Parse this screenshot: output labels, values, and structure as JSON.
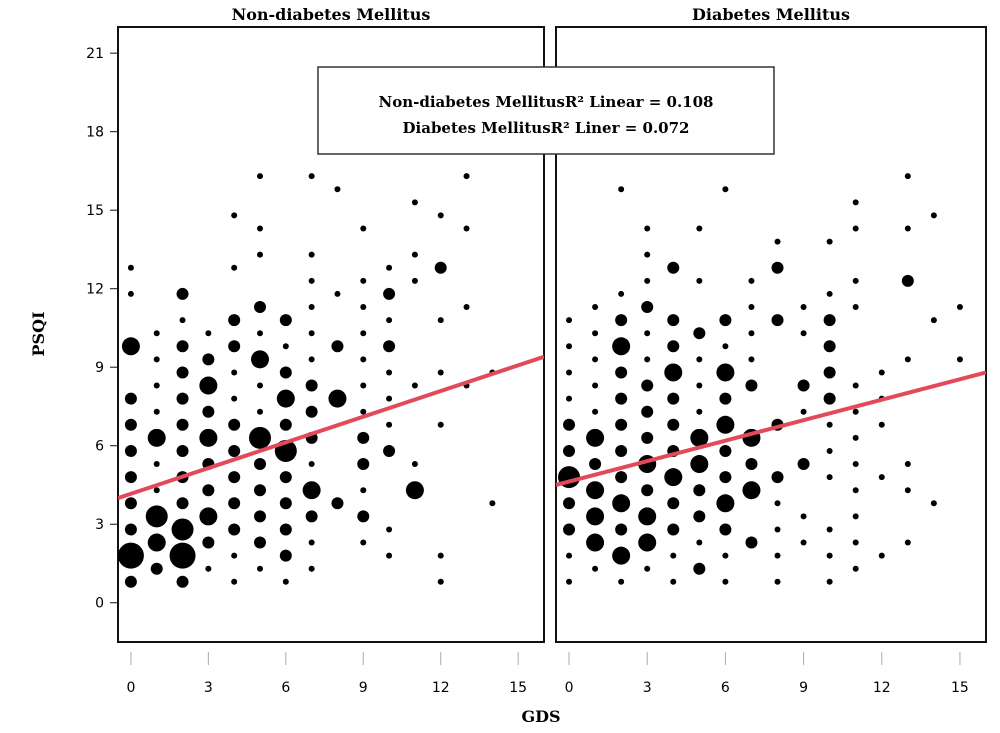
{
  "chart_data": [
    {
      "type": "scatter",
      "title": "Non-diabetes Mellitus",
      "xlabel": "GDS",
      "ylabel": "PSQI",
      "xlim": [
        -0.5,
        16
      ],
      "ylim": [
        -1.5,
        22
      ],
      "xticks": [
        0,
        3,
        6,
        9,
        12,
        15
      ],
      "yticks": [
        0,
        3,
        6,
        9,
        12,
        15,
        18,
        21
      ],
      "grid": false,
      "fit_line": {
        "label": "Non-diabetes MellitusR² Linear = 0.108",
        "color": "#e24a5b",
        "x": [
          -0.5,
          16
        ],
        "y": [
          4.0,
          9.4
        ]
      },
      "points": [
        [
          0,
          0.8,
          2
        ],
        [
          0,
          1.8,
          5
        ],
        [
          0,
          2.8,
          2
        ],
        [
          0,
          3.8,
          2
        ],
        [
          0,
          4.8,
          2
        ],
        [
          0,
          5.8,
          2
        ],
        [
          0,
          6.8,
          2
        ],
        [
          0,
          7.8,
          2
        ],
        [
          0,
          9.8,
          3
        ],
        [
          0,
          11.8,
          1
        ],
        [
          0,
          12.8,
          1
        ],
        [
          1,
          1.3,
          2
        ],
        [
          1,
          2.3,
          3
        ],
        [
          1,
          3.3,
          4
        ],
        [
          1,
          4.3,
          1
        ],
        [
          1,
          5.3,
          1
        ],
        [
          1,
          6.3,
          3
        ],
        [
          1,
          7.3,
          1
        ],
        [
          1,
          8.3,
          1
        ],
        [
          1,
          9.3,
          1
        ],
        [
          1,
          10.3,
          1
        ],
        [
          2,
          0.8,
          2
        ],
        [
          2,
          1.8,
          5
        ],
        [
          2,
          2.8,
          4
        ],
        [
          2,
          3.8,
          2
        ],
        [
          2,
          4.8,
          2
        ],
        [
          2,
          5.8,
          2
        ],
        [
          2,
          6.8,
          2
        ],
        [
          2,
          7.8,
          2
        ],
        [
          2,
          8.8,
          2
        ],
        [
          2,
          9.8,
          2
        ],
        [
          2,
          10.8,
          1
        ],
        [
          2,
          11.8,
          2
        ],
        [
          3,
          1.3,
          1
        ],
        [
          3,
          2.3,
          2
        ],
        [
          3,
          3.3,
          3
        ],
        [
          3,
          4.3,
          2
        ],
        [
          3,
          5.3,
          2
        ],
        [
          3,
          6.3,
          3
        ],
        [
          3,
          7.3,
          2
        ],
        [
          3,
          8.3,
          3
        ],
        [
          3,
          9.3,
          2
        ],
        [
          3,
          10.3,
          1
        ],
        [
          4,
          0.8,
          1
        ],
        [
          4,
          1.8,
          1
        ],
        [
          4,
          2.8,
          2
        ],
        [
          4,
          3.8,
          2
        ],
        [
          4,
          4.8,
          2
        ],
        [
          4,
          5.8,
          2
        ],
        [
          4,
          6.8,
          2
        ],
        [
          4,
          7.8,
          1
        ],
        [
          4,
          8.8,
          1
        ],
        [
          4,
          9.8,
          2
        ],
        [
          4,
          10.8,
          2
        ],
        [
          4,
          12.8,
          1
        ],
        [
          4,
          14.8,
          1
        ],
        [
          5,
          1.3,
          1
        ],
        [
          5,
          2.3,
          2
        ],
        [
          5,
          3.3,
          2
        ],
        [
          5,
          4.3,
          2
        ],
        [
          5,
          5.3,
          2
        ],
        [
          5,
          6.3,
          4
        ],
        [
          5,
          7.3,
          1
        ],
        [
          5,
          8.3,
          1
        ],
        [
          5,
          9.3,
          3
        ],
        [
          5,
          10.3,
          1
        ],
        [
          5,
          11.3,
          2
        ],
        [
          5,
          13.3,
          1
        ],
        [
          5,
          14.3,
          1
        ],
        [
          5,
          16.3,
          1
        ],
        [
          6,
          0.8,
          1
        ],
        [
          6,
          1.8,
          2
        ],
        [
          6,
          2.8,
          2
        ],
        [
          6,
          3.8,
          2
        ],
        [
          6,
          4.8,
          2
        ],
        [
          6,
          5.8,
          4
        ],
        [
          6,
          6.8,
          2
        ],
        [
          6,
          7.8,
          3
        ],
        [
          6,
          8.8,
          2
        ],
        [
          6,
          9.8,
          1
        ],
        [
          6,
          10.8,
          2
        ],
        [
          7,
          1.3,
          1
        ],
        [
          7,
          2.3,
          1
        ],
        [
          7,
          3.3,
          2
        ],
        [
          7,
          4.3,
          3
        ],
        [
          7,
          5.3,
          1
        ],
        [
          7,
          6.3,
          2
        ],
        [
          7,
          7.3,
          2
        ],
        [
          7,
          8.3,
          2
        ],
        [
          7,
          9.3,
          1
        ],
        [
          7,
          10.3,
          1
        ],
        [
          7,
          11.3,
          1
        ],
        [
          7,
          12.3,
          1
        ],
        [
          7,
          13.3,
          1
        ],
        [
          7,
          16.3,
          1
        ],
        [
          8,
          3.8,
          2
        ],
        [
          8,
          7.8,
          3
        ],
        [
          8,
          9.8,
          2
        ],
        [
          8,
          11.8,
          1
        ],
        [
          8,
          15.8,
          1
        ],
        [
          9,
          2.3,
          1
        ],
        [
          9,
          3.3,
          2
        ],
        [
          9,
          4.3,
          1
        ],
        [
          9,
          5.3,
          2
        ],
        [
          9,
          6.3,
          2
        ],
        [
          9,
          7.3,
          1
        ],
        [
          9,
          8.3,
          1
        ],
        [
          9,
          9.3,
          1
        ],
        [
          9,
          10.3,
          1
        ],
        [
          9,
          11.3,
          1
        ],
        [
          9,
          12.3,
          1
        ],
        [
          9,
          14.3,
          1
        ],
        [
          10,
          1.8,
          1
        ],
        [
          10,
          2.8,
          1
        ],
        [
          10,
          5.8,
          2
        ],
        [
          10,
          6.8,
          1
        ],
        [
          10,
          7.8,
          1
        ],
        [
          10,
          8.8,
          1
        ],
        [
          10,
          9.8,
          2
        ],
        [
          10,
          10.8,
          1
        ],
        [
          10,
          11.8,
          2
        ],
        [
          10,
          12.8,
          1
        ],
        [
          11,
          4.3,
          3
        ],
        [
          11,
          5.3,
          1
        ],
        [
          11,
          8.3,
          1
        ],
        [
          11,
          12.3,
          1
        ],
        [
          11,
          13.3,
          1
        ],
        [
          11,
          15.3,
          1
        ],
        [
          12,
          0.8,
          1
        ],
        [
          12,
          1.8,
          1
        ],
        [
          12,
          6.8,
          1
        ],
        [
          12,
          8.8,
          1
        ],
        [
          12,
          10.8,
          1
        ],
        [
          12,
          12.8,
          2
        ],
        [
          12,
          14.8,
          1
        ],
        [
          13,
          8.3,
          1
        ],
        [
          13,
          11.3,
          1
        ],
        [
          13,
          14.3,
          1
        ],
        [
          13,
          16.3,
          1
        ],
        [
          14,
          3.8,
          1
        ],
        [
          14,
          8.8,
          1
        ]
      ]
    },
    {
      "type": "scatter",
      "title": "Diabetes Mellitus",
      "xlabel": "GDS",
      "ylabel": "PSQI",
      "xlim": [
        -0.5,
        16
      ],
      "ylim": [
        -1.5,
        22
      ],
      "xticks": [
        0,
        3,
        6,
        9,
        12,
        15
      ],
      "yticks": [
        0,
        3,
        6,
        9,
        12,
        15,
        18,
        21
      ],
      "grid": false,
      "fit_line": {
        "label": "Diabetes MellitusR² Liner = 0.072",
        "color": "#e24a5b",
        "x": [
          -0.5,
          16
        ],
        "y": [
          4.5,
          8.8
        ]
      },
      "points": [
        [
          0,
          0.8,
          1
        ],
        [
          0,
          1.8,
          1
        ],
        [
          0,
          2.8,
          2
        ],
        [
          0,
          3.8,
          2
        ],
        [
          0,
          4.8,
          4
        ],
        [
          0,
          5.8,
          2
        ],
        [
          0,
          6.8,
          2
        ],
        [
          0,
          7.8,
          1
        ],
        [
          0,
          8.8,
          1
        ],
        [
          0,
          9.8,
          1
        ],
        [
          0,
          10.8,
          1
        ],
        [
          1,
          1.3,
          1
        ],
        [
          1,
          2.3,
          3
        ],
        [
          1,
          3.3,
          3
        ],
        [
          1,
          4.3,
          3
        ],
        [
          1,
          5.3,
          2
        ],
        [
          1,
          6.3,
          3
        ],
        [
          1,
          7.3,
          1
        ],
        [
          1,
          8.3,
          1
        ],
        [
          1,
          9.3,
          1
        ],
        [
          1,
          10.3,
          1
        ],
        [
          1,
          11.3,
          1
        ],
        [
          2,
          0.8,
          1
        ],
        [
          2,
          1.8,
          3
        ],
        [
          2,
          2.8,
          2
        ],
        [
          2,
          3.8,
          3
        ],
        [
          2,
          4.8,
          2
        ],
        [
          2,
          5.8,
          2
        ],
        [
          2,
          6.8,
          2
        ],
        [
          2,
          7.8,
          2
        ],
        [
          2,
          8.8,
          2
        ],
        [
          2,
          9.8,
          3
        ],
        [
          2,
          10.8,
          2
        ],
        [
          2,
          11.8,
          1
        ],
        [
          2,
          15.8,
          1
        ],
        [
          3,
          1.3,
          1
        ],
        [
          3,
          2.3,
          3
        ],
        [
          3,
          3.3,
          3
        ],
        [
          3,
          4.3,
          2
        ],
        [
          3,
          5.3,
          3
        ],
        [
          3,
          6.3,
          2
        ],
        [
          3,
          7.3,
          2
        ],
        [
          3,
          8.3,
          2
        ],
        [
          3,
          9.3,
          1
        ],
        [
          3,
          10.3,
          1
        ],
        [
          3,
          11.3,
          2
        ],
        [
          3,
          12.3,
          1
        ],
        [
          3,
          13.3,
          1
        ],
        [
          3,
          14.3,
          1
        ],
        [
          4,
          0.8,
          1
        ],
        [
          4,
          1.8,
          1
        ],
        [
          4,
          2.8,
          2
        ],
        [
          4,
          3.8,
          2
        ],
        [
          4,
          4.8,
          3
        ],
        [
          4,
          5.8,
          2
        ],
        [
          4,
          6.8,
          2
        ],
        [
          4,
          7.8,
          2
        ],
        [
          4,
          8.8,
          3
        ],
        [
          4,
          9.8,
          2
        ],
        [
          4,
          10.8,
          2
        ],
        [
          4,
          12.8,
          2
        ],
        [
          5,
          1.3,
          2
        ],
        [
          5,
          2.3,
          1
        ],
        [
          5,
          3.3,
          2
        ],
        [
          5,
          4.3,
          2
        ],
        [
          5,
          5.3,
          3
        ],
        [
          5,
          6.3,
          3
        ],
        [
          5,
          7.3,
          1
        ],
        [
          5,
          8.3,
          1
        ],
        [
          5,
          9.3,
          1
        ],
        [
          5,
          10.3,
          2
        ],
        [
          5,
          12.3,
          1
        ],
        [
          5,
          14.3,
          1
        ],
        [
          6,
          0.8,
          1
        ],
        [
          6,
          1.8,
          1
        ],
        [
          6,
          2.8,
          2
        ],
        [
          6,
          3.8,
          3
        ],
        [
          6,
          4.8,
          2
        ],
        [
          6,
          5.8,
          2
        ],
        [
          6,
          6.8,
          3
        ],
        [
          6,
          7.8,
          2
        ],
        [
          6,
          8.8,
          3
        ],
        [
          6,
          9.8,
          1
        ],
        [
          6,
          10.8,
          2
        ],
        [
          6,
          15.8,
          1
        ],
        [
          7,
          2.3,
          2
        ],
        [
          7,
          4.3,
          3
        ],
        [
          7,
          5.3,
          2
        ],
        [
          7,
          6.3,
          3
        ],
        [
          7,
          8.3,
          2
        ],
        [
          7,
          9.3,
          1
        ],
        [
          7,
          10.3,
          1
        ],
        [
          7,
          11.3,
          1
        ],
        [
          7,
          12.3,
          1
        ],
        [
          8,
          0.8,
          1
        ],
        [
          8,
          1.8,
          1
        ],
        [
          8,
          2.8,
          1
        ],
        [
          8,
          3.8,
          1
        ],
        [
          8,
          4.8,
          2
        ],
        [
          8,
          6.8,
          2
        ],
        [
          8,
          10.8,
          2
        ],
        [
          8,
          12.8,
          2
        ],
        [
          8,
          13.8,
          1
        ],
        [
          9,
          2.3,
          1
        ],
        [
          9,
          3.3,
          1
        ],
        [
          9,
          5.3,
          2
        ],
        [
          9,
          7.3,
          1
        ],
        [
          9,
          8.3,
          2
        ],
        [
          9,
          10.3,
          1
        ],
        [
          9,
          11.3,
          1
        ],
        [
          10,
          0.8,
          1
        ],
        [
          10,
          1.8,
          1
        ],
        [
          10,
          2.8,
          1
        ],
        [
          10,
          4.8,
          1
        ],
        [
          10,
          5.8,
          1
        ],
        [
          10,
          6.8,
          1
        ],
        [
          10,
          7.8,
          2
        ],
        [
          10,
          8.8,
          2
        ],
        [
          10,
          9.8,
          2
        ],
        [
          10,
          10.8,
          2
        ],
        [
          10,
          11.8,
          1
        ],
        [
          10,
          13.8,
          1
        ],
        [
          11,
          1.3,
          1
        ],
        [
          11,
          2.3,
          1
        ],
        [
          11,
          3.3,
          1
        ],
        [
          11,
          4.3,
          1
        ],
        [
          11,
          5.3,
          1
        ],
        [
          11,
          6.3,
          1
        ],
        [
          11,
          7.3,
          1
        ],
        [
          11,
          8.3,
          1
        ],
        [
          11,
          11.3,
          1
        ],
        [
          11,
          12.3,
          1
        ],
        [
          11,
          14.3,
          1
        ],
        [
          11,
          15.3,
          1
        ],
        [
          12,
          1.8,
          1
        ],
        [
          12,
          4.8,
          1
        ],
        [
          12,
          6.8,
          1
        ],
        [
          12,
          7.8,
          1
        ],
        [
          12,
          8.8,
          1
        ],
        [
          13,
          2.3,
          1
        ],
        [
          13,
          4.3,
          1
        ],
        [
          13,
          5.3,
          1
        ],
        [
          13,
          9.3,
          1
        ],
        [
          13,
          12.3,
          2
        ],
        [
          13,
          14.3,
          1
        ],
        [
          13,
          16.3,
          1
        ],
        [
          14,
          3.8,
          1
        ],
        [
          14,
          10.8,
          1
        ],
        [
          14,
          14.8,
          1
        ],
        [
          15,
          9.3,
          1
        ],
        [
          15,
          11.3,
          1
        ]
      ]
    }
  ],
  "legend": {
    "line1": "Non-diabetes MellitusR² Linear = 0.108",
    "line2": "Diabetes MellitusR² Liner = 0.072"
  }
}
